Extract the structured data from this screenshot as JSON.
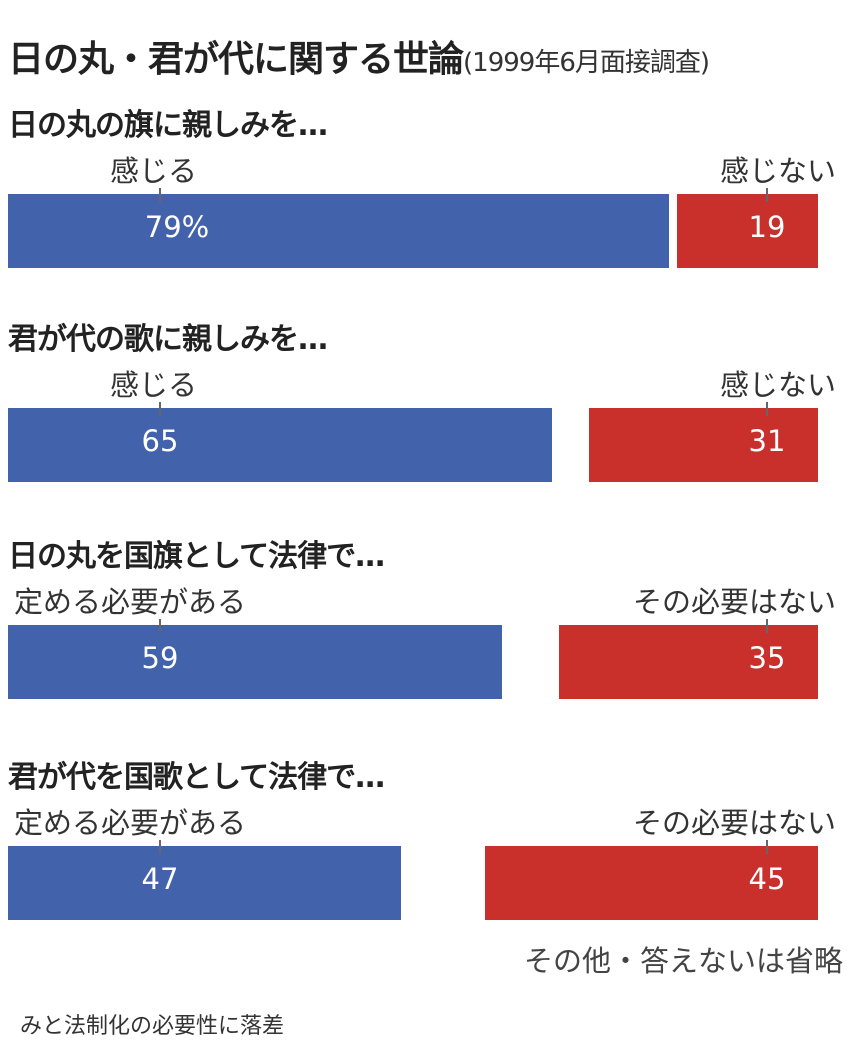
{
  "title": "日の丸・君が代に関する世論",
  "subtitle": "(1999年6月面接調査)",
  "colors": {
    "yes": "#4262ac",
    "no": "#c9302c"
  },
  "chart_data": {
    "type": "bar",
    "title": "日の丸・君が代に関する世論",
    "unit": "%",
    "questions": [
      {
        "question": "日の丸の旗に親しみを…",
        "yes_label": "感じる",
        "no_label": "感じない",
        "yes": 79,
        "no": 19,
        "yes_text": "79%",
        "no_text": "19"
      },
      {
        "question": "君が代の歌に親しみを…",
        "yes_label": "感じる",
        "no_label": "感じない",
        "yes": 65,
        "no": 31,
        "yes_text": "65",
        "no_text": "31"
      },
      {
        "question": "日の丸を国旗として法律で…",
        "yes_label": "定める必要がある",
        "no_label": "その必要はない",
        "yes": 59,
        "no": 35,
        "yes_text": "59",
        "no_text": "35"
      },
      {
        "question": "君が代を国歌として法律で…",
        "yes_label": "定める必要がある",
        "no_label": "その必要はない",
        "yes": 47,
        "no": 45,
        "yes_text": "47",
        "no_text": "45"
      }
    ]
  },
  "note": "その他・答えないは省略",
  "footer": "みと法制化の必要性に落差"
}
